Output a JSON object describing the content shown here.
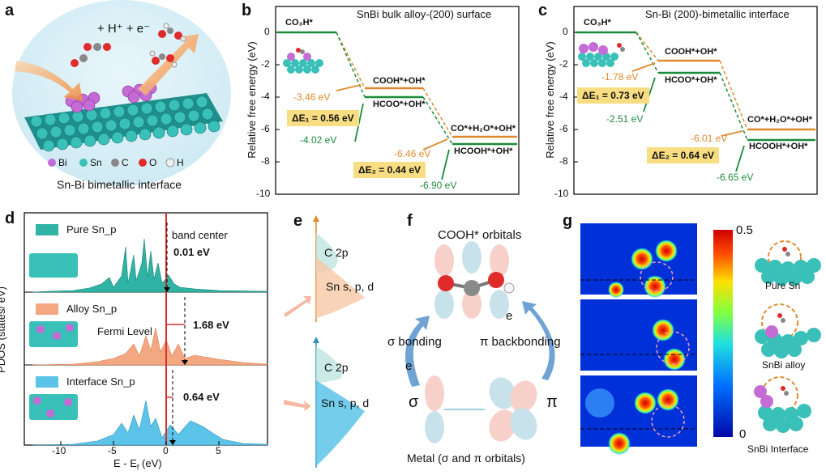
{
  "panels": {
    "a": {
      "label": "a",
      "eq": "+ H⁺ + e⁻",
      "legend": [
        "Bi",
        "Sn",
        "C",
        "O",
        "H"
      ],
      "caption": "Sn-Bi bimetallic interface"
    },
    "b": {
      "label": "b",
      "title": "SnBi bulk alloy-(200) surface",
      "ylabel": "Relative free energy (eV)",
      "yticks": [
        "0",
        "-2",
        "-4",
        "-6",
        "-8",
        "-10"
      ],
      "states": {
        "s0": "CO₃H*",
        "s1a": "COOH*+OH*",
        "s1b": "HCOO*+OH*",
        "s2a": "CO*+H₂O*+OH*",
        "s2b": "HCOOH*+OH*"
      },
      "energies": {
        "e1": "-3.46 eV",
        "e2": "-4.02 eV",
        "e3": "-6.46 eV",
        "e4": "-6.90 eV"
      },
      "dE1": "ΔE₁ = 0.56 eV",
      "dE2": "ΔE₂ = 0.44 eV"
    },
    "c": {
      "label": "c",
      "title": "Sn-Bi (200)-bimetallic interface",
      "ylabel": "Relative free energy (eV)",
      "yticks": [
        "0",
        "-2",
        "-4",
        "-6",
        "-8",
        "-10"
      ],
      "states": {
        "s0": "CO₃H*",
        "s1a": "COOH*+OH*",
        "s1b": "HCOO*+OH*",
        "s2a": "CO*+H₂O*+OH*",
        "s2b": "HCOOH*+OH*"
      },
      "energies": {
        "e1": "-1.78 eV",
        "e2": "-2.51 eV",
        "e3": "-6.01 eV",
        "e4": "-6.65 eV"
      },
      "dE1": "ΔE₁ = 0.73 eV",
      "dE2": "ΔE₂ = 0.64 eV"
    },
    "d": {
      "label": "d",
      "ylabel": "PDOS (states/ eV)",
      "xlabel": "E - E",
      "xlabel_sub": "f",
      "xlabel_unit": " (eV)",
      "xticks": [
        "-10",
        "-5",
        "0",
        "5"
      ],
      "legend": [
        "Pure Sn_p",
        "Alloy Sn_p",
        "Interface Sn_p"
      ],
      "band_center": "band center",
      "fermi": "Fermi Level",
      "shifts": [
        "0.01 eV",
        "1.68 eV",
        "0.64 eV"
      ]
    },
    "e": {
      "label": "e",
      "c2p": "C 2p",
      "sn": "Sn s, p, d"
    },
    "f": {
      "label": "f",
      "title": "COOH* orbitals",
      "sigma_bond": "σ bonding",
      "pi_back": "π backbonding",
      "e": "e",
      "sigma": "σ",
      "pi": "π",
      "metal": "Metal (σ and π orbitals)"
    },
    "g": {
      "label": "g",
      "cbar_max": "0.5",
      "cbar_min": "0",
      "models": [
        "Pure Sn",
        "SnBi alloy",
        "SnBi Interface"
      ]
    }
  },
  "colors": {
    "green": "#1c8a3a",
    "orange": "#e0892c",
    "teal": "#2fb3a4",
    "peach": "#f4a882",
    "skyblue": "#5bc4e8",
    "box": "#f8dd83"
  }
}
